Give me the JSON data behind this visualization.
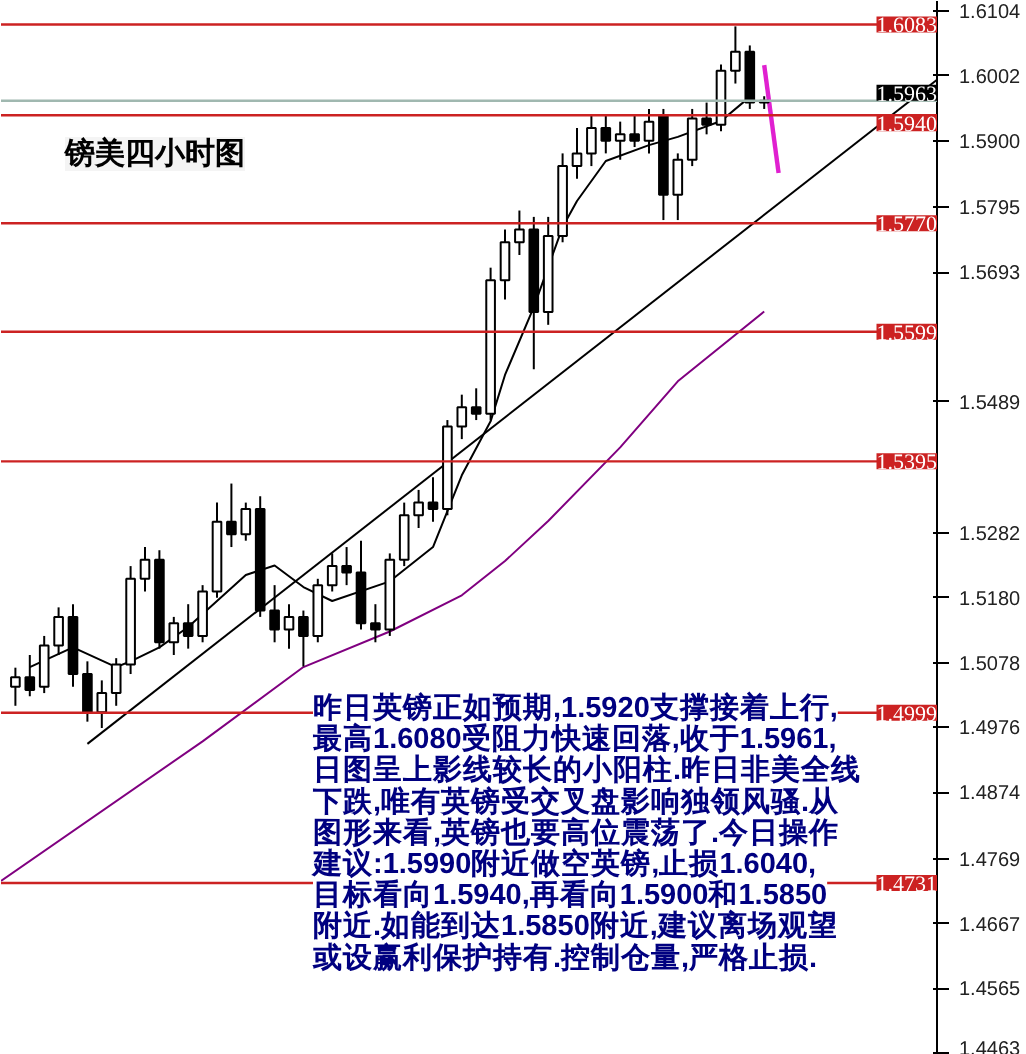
{
  "chart_data": {
    "type": "candlestick",
    "annotations": [
      "镑美四小时图",
      "昨日英镑正如预期,1.5920支撑接着上行,",
      "最高1.6080受阻力快速回落,收于1.5961,",
      "日图呈上影线较长的小阳柱.昨日非美全线",
      "下跌,唯有英镑受交叉盘影响独领风骚.从",
      "图形来看,英镑也要高位震荡了.今日操作",
      "建议:1.5990附近做空英镑,止损1.6040,",
      "目标看向1.5940,再看向1.5900和1.5850",
      "附近.如能到达1.5850附近,建议离场观望",
      "或设赢利保护持有.控制仓量,严格止损."
    ],
    "categories": [
      null,
      null,
      null,
      null,
      null,
      null,
      null,
      null,
      null,
      null,
      null,
      null,
      null,
      null,
      null,
      null,
      null,
      null,
      null,
      null,
      null,
      null,
      null,
      null,
      null,
      null,
      null,
      null,
      null,
      null,
      null,
      null,
      null,
      null,
      null,
      null,
      null,
      null,
      null,
      null,
      null,
      null,
      null,
      null,
      null,
      null,
      null,
      null,
      null,
      null,
      null,
      null,
      null,
      null,
      null,
      null,
      null,
      null,
      null,
      null,
      null,
      null,
      null,
      null,
      null,
      null
    ],
    "ylim": [
      1.446,
      1.612
    ],
    "yticks": [
      1.6104,
      1.6002,
      {
        "value": 1.59,
        "label": "1.5900"
      },
      1.5795,
      1.5693,
      1.5489,
      1.5282,
      {
        "value": 1.518,
        "label": "1.5180"
      },
      1.5078,
      1.4976,
      1.4874,
      1.4769,
      1.4667,
      1.4565,
      1.4463
    ],
    "tick_labels": "y",
    "grid": false,
    "ref_lines": [
      {
        "axis": "y",
        "value": 1.6083,
        "label": "1.6083",
        "color": "#cc2222"
      },
      {
        "axis": "y",
        "value": 1.5963,
        "label": "1.5963",
        "color": "#a0b8b0"
      },
      {
        "axis": "y",
        "value": 1.594,
        "label": "1.5940",
        "color": "#cc2222"
      },
      {
        "axis": "y",
        "value": 1.577,
        "label": "1.5770",
        "color": "#cc2222"
      },
      {
        "axis": "y",
        "value": 1.5599,
        "label": "1.5599",
        "color": "#cc2222"
      },
      {
        "axis": "y",
        "value": 1.5395,
        "label": "1.5395",
        "color": "#cc2222"
      },
      {
        "axis": "y",
        "value": 1.4999,
        "label": "1.4999",
        "color": "#cc2222"
      },
      {
        "axis": "y",
        "value": 1.4731,
        "label": "1.4731",
        "color": "#cc2222"
      }
    ],
    "series": [
      {
        "type": "line",
        "color": "#800080",
        "values": [
          1.4734,
          null,
          null,
          null,
          null,
          null,
          null,
          null,
          null,
          null,
          null,
          null,
          null,
          null,
          1.4954,
          null,
          null,
          null,
          null,
          null,
          null,
          1.5071,
          null,
          null,
          null,
          null,
          null,
          1.5127,
          null,
          null,
          null,
          null,
          1.5184,
          null,
          null,
          1.5238,
          null,
          null,
          1.5301,
          null,
          null,
          null,
          null,
          1.5417,
          null,
          null,
          null,
          1.5521,
          null,
          null,
          null,
          null,
          null,
          1.5631,
          null,
          null,
          null,
          null,
          null,
          null,
          null,
          null,
          null,
          null,
          null,
          null
        ]
      },
      {
        "type": "line",
        "color": "#000000",
        "values": [
          null,
          null,
          null,
          null,
          null,
          null,
          1.495,
          null,
          null,
          null,
          null,
          null,
          null,
          null,
          null,
          null,
          null,
          null,
          null,
          null,
          null,
          null,
          null,
          null,
          null,
          null,
          null,
          null,
          null,
          null,
          null,
          null,
          null,
          null,
          null,
          null,
          null,
          null,
          null,
          null,
          null,
          null,
          null,
          null,
          null,
          null,
          null,
          null,
          null,
          null,
          null,
          null,
          null,
          null,
          null,
          null,
          null,
          null,
          null,
          null,
          null,
          null,
          null,
          null,
          null,
          1.5996
        ]
      },
      {
        "type": "line",
        "color": "#000000",
        "values": [
          null,
          null,
          1.5071,
          null,
          null,
          1.5102,
          null,
          null,
          1.5071,
          1.508,
          null,
          1.5102,
          null,
          1.5134,
          null,
          null,
          null,
          1.5216,
          null,
          1.5231,
          null,
          1.5197,
          null,
          1.5175,
          null,
          null,
          null,
          1.5206,
          null,
          null,
          1.526,
          null,
          1.5373,
          null,
          1.5458,
          1.5531,
          null,
          1.5638,
          null,
          1.5764,
          1.5805,
          null,
          1.5868,
          null,
          null,
          1.5893,
          null,
          1.5906,
          null,
          null,
          1.5931,
          null,
          1.5969,
          null,
          null,
          null,
          null,
          null,
          null,
          null,
          null,
          null,
          null,
          null,
          null,
          null
        ]
      },
      {
        "type": "line",
        "color": "#e020d0",
        "values": [
          null,
          null,
          null,
          null,
          null,
          null,
          null,
          null,
          null,
          null,
          null,
          null,
          null,
          null,
          null,
          null,
          null,
          null,
          null,
          null,
          null,
          null,
          null,
          null,
          null,
          null,
          null,
          null,
          null,
          null,
          null,
          null,
          null,
          null,
          null,
          null,
          null,
          null,
          null,
          null,
          null,
          null,
          null,
          null,
          null,
          null,
          null,
          null,
          null,
          null,
          null,
          null,
          null,
          1.6019,
          1.5849,
          null,
          null,
          null,
          null,
          null,
          null,
          null,
          null,
          null,
          null,
          null
        ]
      },
      {
        "color": "#000000",
        "ohlc": [
          null,
          [
            1.504,
            1.507,
            1.501,
            1.5055
          ],
          [
            1.5055,
            1.509,
            1.5025,
            1.5035
          ],
          [
            1.504,
            1.512,
            1.503,
            1.5105
          ],
          [
            1.5105,
            1.5165,
            1.509,
            1.515
          ],
          [
            1.515,
            1.517,
            1.504,
            1.506
          ],
          [
            1.506,
            1.508,
            1.4985,
            1.5
          ],
          [
            1.5,
            1.505,
            1.4975,
            1.503
          ],
          [
            1.503,
            1.5085,
            1.501,
            1.5075
          ],
          [
            1.5075,
            1.523,
            1.506,
            1.521
          ],
          [
            1.521,
            1.526,
            1.519,
            1.524
          ],
          [
            1.524,
            1.5255,
            1.51,
            1.511
          ],
          [
            1.511,
            1.515,
            1.509,
            1.514
          ],
          [
            1.514,
            1.517,
            1.51,
            1.512
          ],
          [
            1.512,
            1.52,
            1.511,
            1.519
          ],
          [
            1.519,
            1.533,
            1.518,
            1.53
          ],
          [
            1.53,
            1.536,
            1.526,
            1.528
          ],
          [
            1.528,
            1.533,
            1.527,
            1.532
          ],
          [
            1.532,
            1.534,
            1.515,
            1.516
          ],
          [
            1.516,
            1.52,
            1.511,
            1.513
          ],
          [
            1.513,
            1.517,
            1.51,
            1.515
          ],
          [
            1.515,
            1.516,
            1.5072,
            1.512
          ],
          [
            1.512,
            1.521,
            1.511,
            1.52
          ],
          [
            1.52,
            1.525,
            1.519,
            1.523
          ],
          [
            1.523,
            1.526,
            1.52,
            1.522
          ],
          [
            1.522,
            1.527,
            1.513,
            1.514
          ],
          [
            1.514,
            1.517,
            1.511,
            1.513
          ],
          [
            1.513,
            1.525,
            1.512,
            1.524
          ],
          [
            1.524,
            1.533,
            1.523,
            1.531
          ],
          [
            1.531,
            1.535,
            1.529,
            1.533
          ],
          [
            1.533,
            1.537,
            1.53,
            1.532
          ],
          [
            1.532,
            1.546,
            1.531,
            1.545
          ],
          [
            1.545,
            1.55,
            1.543,
            1.548
          ],
          [
            1.548,
            1.551,
            1.546,
            1.547
          ],
          [
            1.547,
            1.57,
            1.546,
            1.568
          ],
          [
            1.568,
            1.576,
            1.565,
            1.574
          ],
          [
            1.574,
            1.579,
            1.572,
            1.576
          ],
          [
            1.576,
            1.578,
            1.554,
            1.563
          ],
          [
            1.563,
            1.578,
            1.561,
            1.575
          ],
          [
            1.575,
            1.588,
            1.574,
            1.586
          ],
          [
            1.586,
            1.592,
            1.584,
            1.588
          ],
          [
            1.588,
            1.594,
            1.586,
            1.592
          ],
          [
            1.592,
            1.594,
            1.588,
            1.59
          ],
          [
            1.59,
            1.593,
            1.587,
            1.591
          ],
          [
            1.591,
            1.594,
            1.589,
            1.59
          ],
          [
            1.59,
            1.595,
            1.588,
            1.593
          ],
          [
            1.594,
            1.595,
            1.5775,
            1.5815
          ],
          [
            1.5815,
            1.588,
            1.5775,
            1.587
          ],
          [
            1.587,
            1.595,
            1.586,
            1.5935
          ],
          [
            1.5935,
            1.596,
            1.591,
            1.5925
          ],
          [
            1.5925,
            1.602,
            1.5915,
            1.601
          ],
          [
            1.601,
            1.608,
            1.599,
            1.604
          ],
          [
            1.604,
            1.605,
            1.595,
            1.596
          ],
          [
            1.596,
            1.597,
            1.595,
            1.5963
          ],
          null,
          null,
          null,
          null,
          null,
          null,
          null,
          null,
          null,
          null,
          null,
          null
        ]
      }
    ]
  }
}
